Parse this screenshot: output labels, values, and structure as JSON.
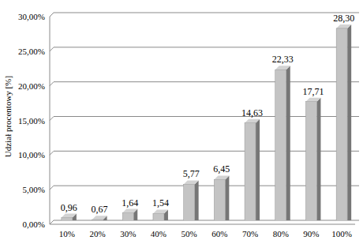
{
  "chart_data": {
    "type": "bar",
    "ylabel": "Udział procentowy [%]",
    "categories": [
      "10%",
      "20%",
      "30%",
      "40%",
      "50%",
      "60%",
      "70%",
      "80%",
      "90%",
      "100%"
    ],
    "values": [
      0.96,
      0.67,
      1.64,
      1.54,
      5.77,
      6.45,
      14.63,
      22.33,
      17.71,
      28.3
    ],
    "value_labels": [
      "0,96",
      "0,67",
      "1,64",
      "1,54",
      "5,77",
      "6,45",
      "14,63",
      "22,33",
      "17,71",
      "28,30"
    ],
    "color": "#c4c4c4",
    "ylim": [
      0,
      30
    ],
    "yticks": [
      {
        "value": 0,
        "label": "0,00%"
      },
      {
        "value": 5,
        "label": "5,00%"
      },
      {
        "value": 10,
        "label": "10,00%"
      },
      {
        "value": 15,
        "label": "15,00%"
      },
      {
        "value": 20,
        "label": "20,00%"
      },
      {
        "value": 25,
        "label": "25,00%"
      },
      {
        "value": 30,
        "label": "30,00%"
      }
    ],
    "grid": true,
    "data_labels": true
  }
}
